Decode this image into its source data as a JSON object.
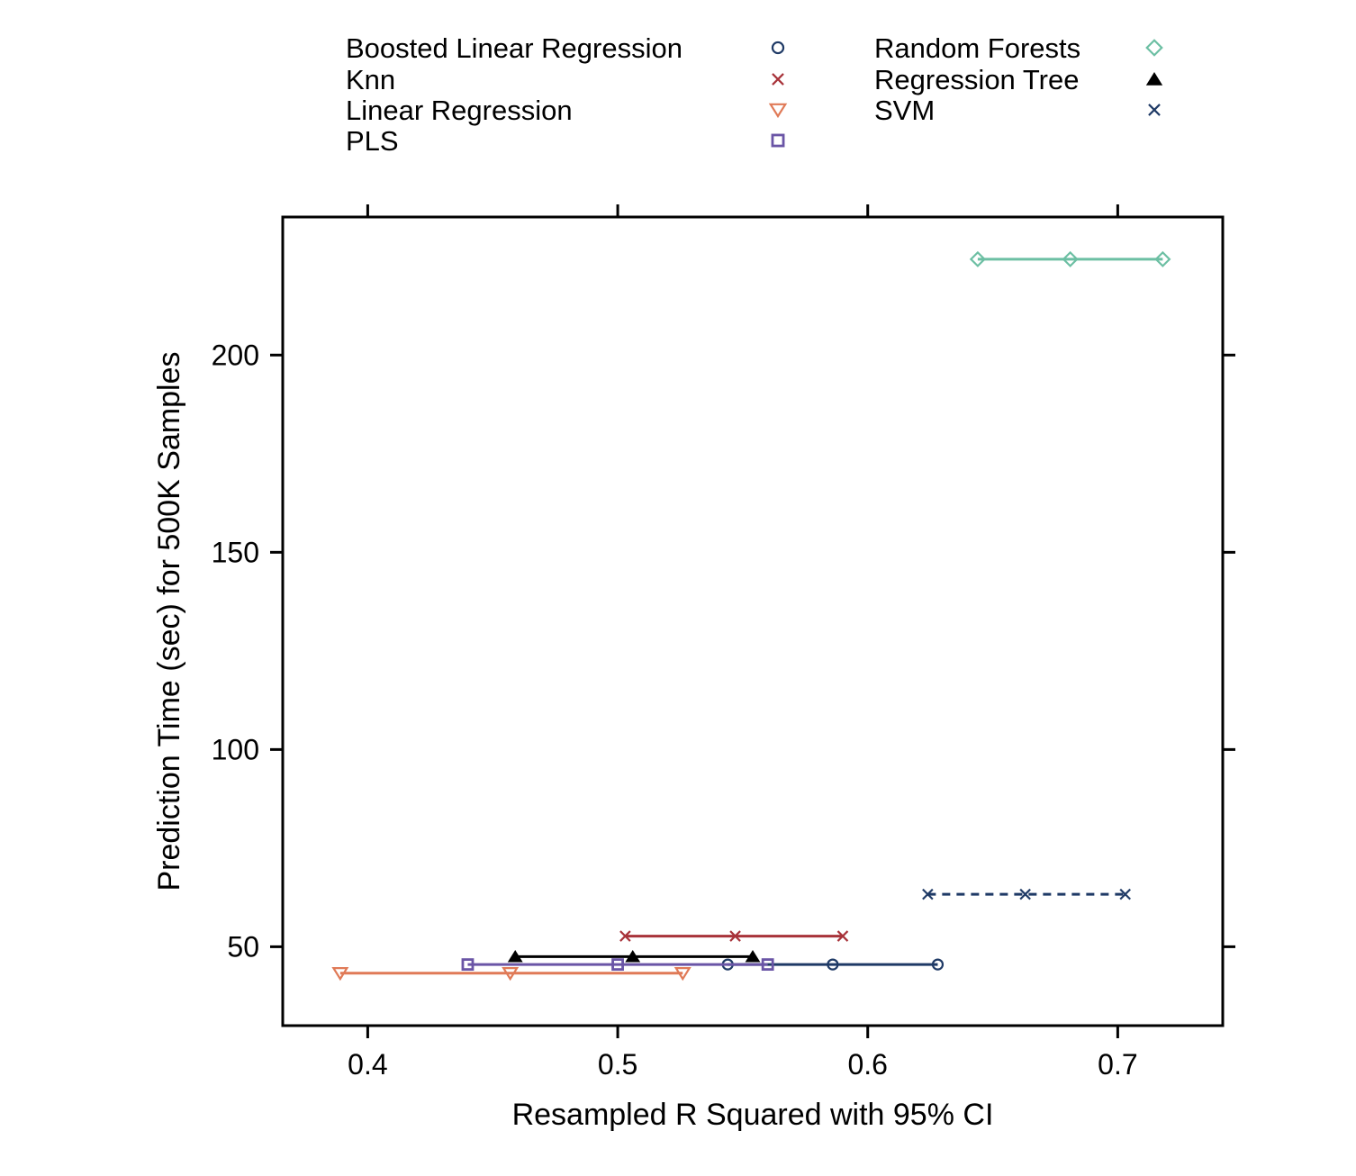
{
  "chart_data": {
    "type": "scatter",
    "xlabel": "Resampled R Squared with 95% CI",
    "ylabel": "Prediction Time (sec) for 500K Samples",
    "xlim": [
      0.366,
      0.742
    ],
    "ylim": [
      30,
      235
    ],
    "x_ticks": [
      0.4,
      0.5,
      0.6,
      0.7
    ],
    "x_tick_labels": [
      "0.4",
      "0.5",
      "0.6",
      "0.7"
    ],
    "y_ticks": [
      50,
      100,
      150,
      200
    ],
    "y_tick_labels": [
      "50",
      "100",
      "150",
      "200"
    ],
    "grid": false,
    "legend_position": "top",
    "series": [
      {
        "name": "Boosted Linear Regression",
        "color": "#1f3a66",
        "marker": "circle",
        "line": "solid",
        "y": 45.5,
        "x": [
          0.544,
          0.586,
          0.628
        ]
      },
      {
        "name": "Knn",
        "color": "#a8333a",
        "marker": "x",
        "line": "solid",
        "y": 52.7,
        "x": [
          0.503,
          0.547,
          0.59
        ]
      },
      {
        "name": "Linear Regression",
        "color": "#e07a57",
        "marker": "triangle-down",
        "line": "solid",
        "y": 43.3,
        "x": [
          0.389,
          0.457,
          0.526
        ]
      },
      {
        "name": "PLS",
        "color": "#6a55a6",
        "marker": "square",
        "line": "solid",
        "y": 45.5,
        "x": [
          0.44,
          0.5,
          0.56
        ]
      },
      {
        "name": "Random Forests",
        "color": "#6cbfa3",
        "marker": "diamond",
        "line": "solid",
        "y": 224.3,
        "x": [
          0.644,
          0.681,
          0.718
        ]
      },
      {
        "name": "Regression Tree",
        "color": "#000000",
        "marker": "triangle-up",
        "line": "solid",
        "y": 47.5,
        "x": [
          0.459,
          0.506,
          0.554
        ]
      },
      {
        "name": "SVM",
        "color": "#1f3a66",
        "marker": "x",
        "line": "dashed",
        "y": 63.3,
        "x": [
          0.624,
          0.663,
          0.703
        ]
      }
    ]
  }
}
